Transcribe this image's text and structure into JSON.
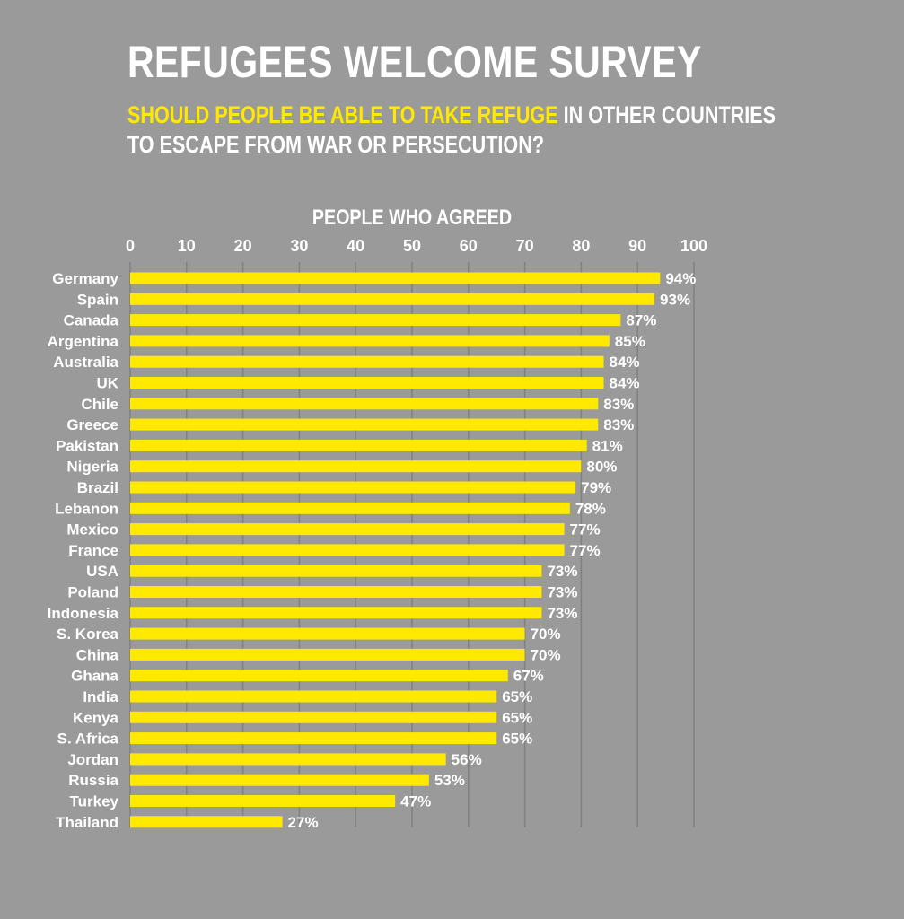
{
  "title": "REFUGEES WELCOME SURVEY",
  "subtitle": {
    "highlight": "SHOULD PEOPLE BE ABLE TO TAKE REFUGE",
    "rest_line1": " IN OTHER COUNTRIES",
    "line2": "TO ESCAPE FROM WAR OR PERSECUTION?"
  },
  "colors": {
    "background": "#9a9a9a",
    "bar": "#ffe900",
    "text": "#ffffff",
    "gridline": "#808080"
  },
  "chart_data": {
    "type": "bar",
    "orientation": "horizontal",
    "title": "PEOPLE WHO AGREED",
    "xlim": [
      0,
      100
    ],
    "xticks": [
      0,
      10,
      20,
      30,
      40,
      50,
      60,
      70,
      80,
      90,
      100
    ],
    "axis_position": "top",
    "value_suffix": "%",
    "categories": [
      "Germany",
      "Spain",
      "Canada",
      "Argentina",
      "Australia",
      "UK",
      "Chile",
      "Greece",
      "Pakistan",
      "Nigeria",
      "Brazil",
      "Lebanon",
      "Mexico",
      "France",
      "USA",
      "Poland",
      "Indonesia",
      "S. Korea",
      "China",
      "Ghana",
      "India",
      "Kenya",
      "S. Africa",
      "Jordan",
      "Russia",
      "Turkey",
      "Thailand"
    ],
    "values": [
      94,
      93,
      87,
      85,
      84,
      84,
      83,
      83,
      81,
      80,
      79,
      78,
      77,
      77,
      73,
      73,
      73,
      70,
      70,
      67,
      65,
      65,
      65,
      56,
      53,
      47,
      27
    ],
    "value_labels": [
      "94%",
      "93%",
      "87%",
      "85%",
      "84%",
      "84%",
      "83%",
      "83%",
      "81%",
      "80%",
      "79%",
      "78%",
      "77%",
      "77%",
      "73%",
      "73%",
      "73%",
      "70%",
      "70%",
      "67%",
      "65%",
      "65%",
      "65%",
      "56%",
      "53%",
      "47%",
      "27%"
    ]
  }
}
